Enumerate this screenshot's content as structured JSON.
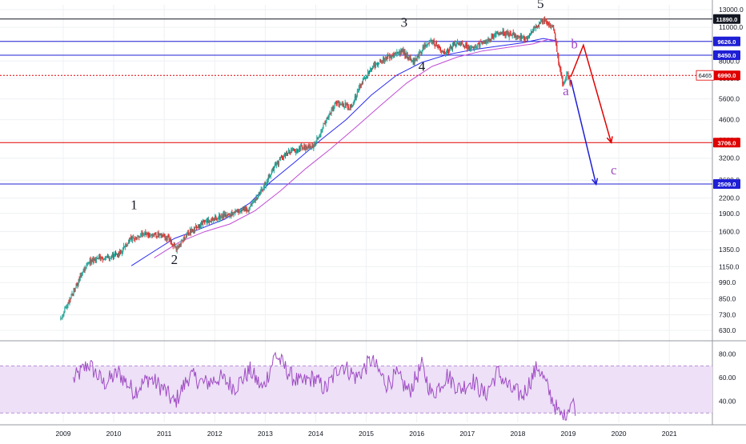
{
  "chart_data": {
    "type": "candlestick",
    "scale": "log",
    "x_axis": {
      "labels": [
        "2009",
        "2010",
        "2011",
        "2012",
        "2013",
        "2014",
        "2015",
        "2016",
        "2017",
        "2018",
        "2019",
        "2020",
        "2021"
      ],
      "start_year": 2009
    },
    "y_axis": {
      "tick_values": [
        630,
        730,
        850,
        990,
        1150,
        1350,
        1600,
        1900,
        2200,
        2600,
        3200,
        3800,
        4600,
        5600,
        6800,
        8000,
        9600,
        11000,
        13000
      ],
      "tick_labels": [
        "630.0",
        "730.0",
        "850.0",
        "990.0",
        "1150.0",
        "1350.0",
        "1600.0",
        "1900.0",
        "2200.0",
        "2600.0",
        "3200.0",
        "3800.0",
        "4600.0",
        "5600.0",
        "6800.0",
        "8000.0",
        "9600.0",
        "11000.0",
        "13000.0"
      ],
      "range": [
        580,
        13600
      ]
    },
    "horizontal_lines": [
      {
        "value": 11890,
        "label": "11890.0",
        "color": "#131722",
        "style": "solid"
      },
      {
        "value": 9626,
        "label": "9626.0",
        "color": "#1f1fd6",
        "style": "solid"
      },
      {
        "value": 8450,
        "label": "8450.0",
        "color": "#1f1fd6",
        "style": "solid"
      },
      {
        "value": 6990,
        "label": "6990.0",
        "color": "#e00000",
        "style": "dotted"
      },
      {
        "value": 3706,
        "label": "3706.0",
        "color": "#e00000",
        "style": "solid"
      },
      {
        "value": 2509,
        "label": "2509.0",
        "color": "#1f1fd6",
        "style": "solid"
      }
    ],
    "last_price_label": "6465",
    "price_anchors": [
      [
        2008.95,
        700
      ],
      [
        2009.2,
        900
      ],
      [
        2009.5,
        1200
      ],
      [
        2009.8,
        1250
      ],
      [
        2010.1,
        1300
      ],
      [
        2010.35,
        1500
      ],
      [
        2010.6,
        1550
      ],
      [
        2010.9,
        1550
      ],
      [
        2011.1,
        1500
      ],
      [
        2011.25,
        1350
      ],
      [
        2011.5,
        1600
      ],
      [
        2011.8,
        1750
      ],
      [
        2012.1,
        1850
      ],
      [
        2012.4,
        1900
      ],
      [
        2012.7,
        2000
      ],
      [
        2012.95,
        2400
      ],
      [
        2013.2,
        3000
      ],
      [
        2013.45,
        3400
      ],
      [
        2013.7,
        3500
      ],
      [
        2013.95,
        3600
      ],
      [
        2014.15,
        4300
      ],
      [
        2014.4,
        5400
      ],
      [
        2014.7,
        5200
      ],
      [
        2014.95,
        6800
      ],
      [
        2015.25,
        8000
      ],
      [
        2015.5,
        8400
      ],
      [
        2015.7,
        8800
      ],
      [
        2015.95,
        7900
      ],
      [
        2016.15,
        9200
      ],
      [
        2016.3,
        9600
      ],
      [
        2016.55,
        8600
      ],
      [
        2016.8,
        9400
      ],
      [
        2017.1,
        9000
      ],
      [
        2017.4,
        9700
      ],
      [
        2017.65,
        10500
      ],
      [
        2017.9,
        10200
      ],
      [
        2018.15,
        9800
      ],
      [
        2018.35,
        11000
      ],
      [
        2018.5,
        11890
      ],
      [
        2018.7,
        11000
      ],
      [
        2018.8,
        8000
      ],
      [
        2018.9,
        6200
      ],
      [
        2018.97,
        7200
      ],
      [
        2019.05,
        6465
      ]
    ],
    "moving_averages": [
      {
        "name": "",
        "color": "#2a2af0",
        "points": [
          [
            2010.35,
            1160
          ],
          [
            2010.8,
            1330
          ],
          [
            2011.2,
            1500
          ],
          [
            2011.7,
            1640
          ],
          [
            2012.2,
            1800
          ],
          [
            2012.7,
            2100
          ],
          [
            2013.1,
            2550
          ],
          [
            2013.6,
            3100
          ],
          [
            2014.1,
            3800
          ],
          [
            2014.6,
            4600
          ],
          [
            2015.1,
            5800
          ],
          [
            2015.6,
            7000
          ],
          [
            2016.1,
            7900
          ],
          [
            2016.6,
            8500
          ],
          [
            2017.1,
            8900
          ],
          [
            2017.6,
            9200
          ],
          [
            2018.1,
            9500
          ],
          [
            2018.5,
            9900
          ],
          [
            2018.75,
            9700
          ]
        ]
      },
      {
        "name": "",
        "color": "#c24dd6",
        "points": [
          [
            2010.8,
            1250
          ],
          [
            2011.3,
            1450
          ],
          [
            2011.8,
            1600
          ],
          [
            2012.3,
            1720
          ],
          [
            2012.8,
            1950
          ],
          [
            2013.3,
            2350
          ],
          [
            2013.8,
            2900
          ],
          [
            2014.3,
            3500
          ],
          [
            2014.8,
            4300
          ],
          [
            2015.3,
            5300
          ],
          [
            2015.8,
            6500
          ],
          [
            2016.3,
            7600
          ],
          [
            2016.8,
            8300
          ],
          [
            2017.3,
            8800
          ],
          [
            2017.8,
            9100
          ],
          [
            2018.3,
            9400
          ],
          [
            2018.6,
            9800
          ],
          [
            2018.8,
            9500
          ]
        ]
      }
    ],
    "projections": [
      {
        "color": "#e00000",
        "points": [
          [
            2019.05,
            6900
          ],
          [
            2019.3,
            9300
          ],
          [
            2019.85,
            3706
          ]
        ]
      },
      {
        "color": "#1f1fd6",
        "points": [
          [
            2019.05,
            6700
          ],
          [
            2019.55,
            2500
          ]
        ]
      }
    ],
    "wave_labels": [
      {
        "text": "1",
        "x": 2010.4,
        "y": 1980,
        "color": "#131722"
      },
      {
        "text": "2",
        "x": 2011.2,
        "y": 1180,
        "color": "#131722"
      },
      {
        "text": "3",
        "x": 2015.75,
        "y": 11050,
        "color": "#131722"
      },
      {
        "text": "4",
        "x": 2016.1,
        "y": 7300,
        "color": "#131722"
      },
      {
        "text": "5",
        "x": 2018.45,
        "y": 13200,
        "color": "#131722"
      },
      {
        "text": "a",
        "x": 2018.95,
        "y": 5800,
        "color": "#a04cc4"
      },
      {
        "text": "b",
        "x": 2019.12,
        "y": 9000,
        "color": "#a04cc4"
      },
      {
        "text": "c",
        "x": 2019.9,
        "y": 2750,
        "color": "#a04cc4"
      }
    ],
    "rsi": {
      "tick_values": [
        40,
        60,
        80
      ],
      "tick_labels": [
        "40.00",
        "60.00",
        "80.00"
      ],
      "band": [
        30,
        70
      ],
      "range": [
        22,
        90
      ],
      "anchors": [
        [
          2009.2,
          58
        ],
        [
          2009.5,
          72
        ],
        [
          2009.8,
          55
        ],
        [
          2010.1,
          64
        ],
        [
          2010.4,
          48
        ],
        [
          2010.7,
          60
        ],
        [
          2011.0,
          50
        ],
        [
          2011.2,
          38
        ],
        [
          2011.5,
          62
        ],
        [
          2011.8,
          55
        ],
        [
          2012.1,
          60
        ],
        [
          2012.4,
          52
        ],
        [
          2012.7,
          66
        ],
        [
          2012.95,
          50
        ],
        [
          2013.2,
          80
        ],
        [
          2013.5,
          62
        ],
        [
          2013.7,
          55
        ],
        [
          2013.95,
          60
        ],
        [
          2014.2,
          50
        ],
        [
          2014.5,
          72
        ],
        [
          2014.8,
          60
        ],
        [
          2015.1,
          75
        ],
        [
          2015.4,
          55
        ],
        [
          2015.6,
          62
        ],
        [
          2015.85,
          48
        ],
        [
          2016.1,
          70
        ],
        [
          2016.3,
          45
        ],
        [
          2016.6,
          62
        ],
        [
          2016.85,
          50
        ],
        [
          2017.1,
          58
        ],
        [
          2017.35,
          45
        ],
        [
          2017.6,
          65
        ],
        [
          2017.85,
          50
        ],
        [
          2018.1,
          45
        ],
        [
          2018.4,
          70
        ],
        [
          2018.6,
          50
        ],
        [
          2018.8,
          30
        ],
        [
          2018.92,
          26
        ],
        [
          2019.05,
          40
        ],
        [
          2019.15,
          35
        ]
      ]
    },
    "colors": {
      "up": "#26a69a",
      "down": "#e0312f",
      "rsi_line": "#a04cc4",
      "rsi_band": "#ede0f7",
      "grid": "#eef0f3",
      "axis_text": "#131722"
    }
  }
}
